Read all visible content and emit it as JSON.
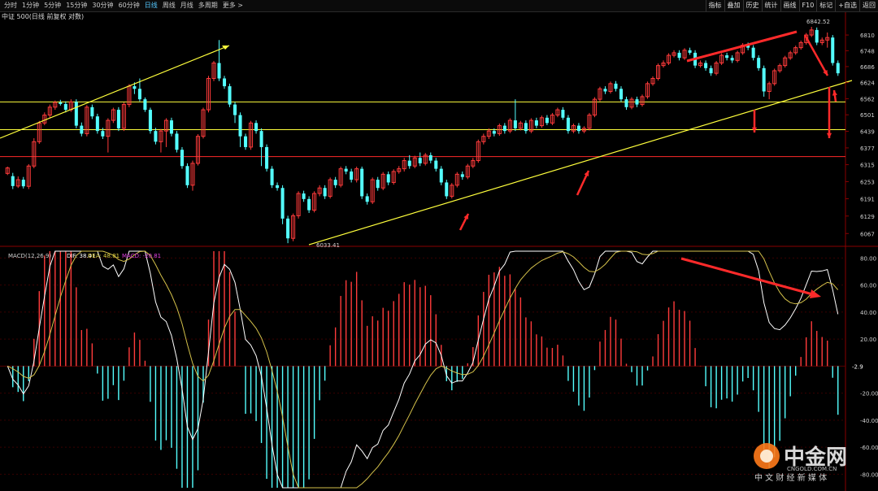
{
  "toolbar": {
    "tabs": [
      "分时",
      "1分钟",
      "5分钟",
      "15分钟",
      "30分钟",
      "60分钟",
      "日线",
      "周线",
      "月线",
      "多周期",
      "更多 >"
    ],
    "active_tab": "日线",
    "tools": [
      "指标",
      "叠加",
      "历史",
      "统计",
      "画线",
      "F10",
      "标记",
      "+自选",
      "返回"
    ]
  },
  "price_panel": {
    "instrument_label": "中证 500(日线 前复权 对数)",
    "y_ticks": [
      "6810",
      "6748",
      "6686",
      "6624",
      "6562",
      "6501",
      "6439",
      "6377",
      "6315",
      "6253",
      "6191",
      "6129",
      "6067"
    ],
    "high_label": "6842.52",
    "low_label": "6033.41"
  },
  "macd_panel": {
    "name": "MACD(12,26,9)",
    "dif_label": "DIF: 38.41",
    "dea_label": "DEA: 48.81",
    "macd_label": "MACD: -20.81",
    "y_ticks": [
      "80.00",
      "60.00",
      "40.00",
      "20.00",
      "-20.00",
      "-40.00",
      "-60.00",
      "-80.00"
    ],
    "current_label": "-2.9"
  },
  "watermark": {
    "brand": "中金网",
    "domain": "CNGOLD.COM.CN",
    "tagline": "中 文 财 经 新 媒 体"
  },
  "colors": {
    "up": "#ff3b3b",
    "down": "#54ffff",
    "line_dif": "#ffffff",
    "line_dea": "#d4c14a",
    "annot_yellow": "#ffff3c",
    "annot_red": "#ff2a2a",
    "grid": "#5a0000"
  },
  "chart_data": {
    "type": "candlestick",
    "candles": [
      [
        6283,
        6303,
        6277,
        6308
      ],
      [
        6273,
        6237,
        6226,
        6285
      ],
      [
        6237,
        6260,
        6230,
        6272
      ],
      [
        6260,
        6236,
        6228,
        6270
      ],
      [
        6236,
        6310,
        6226,
        6317
      ],
      [
        6310,
        6400,
        6302,
        6413
      ],
      [
        6400,
        6470,
        6392,
        6478
      ],
      [
        6470,
        6500,
        6462,
        6510
      ],
      [
        6500,
        6530,
        6488,
        6540
      ],
      [
        6530,
        6548,
        6520,
        6555
      ],
      [
        6548,
        6542,
        6536,
        6558
      ],
      [
        6542,
        6520,
        6510,
        6552
      ],
      [
        6520,
        6550,
        6512,
        6560
      ],
      [
        6550,
        6460,
        6450,
        6560
      ],
      [
        6460,
        6430,
        6420,
        6472
      ],
      [
        6430,
        6530,
        6420,
        6538
      ],
      [
        6530,
        6495,
        6485,
        6540
      ],
      [
        6495,
        6440,
        6430,
        6505
      ],
      [
        6440,
        6420,
        6410,
        6452
      ],
      [
        6420,
        6480,
        6360,
        6488
      ],
      [
        6480,
        6520,
        6470,
        6528
      ],
      [
        6520,
        6450,
        6440,
        6530
      ],
      [
        6450,
        6540,
        6440,
        6548
      ],
      [
        6540,
        6610,
        6530,
        6618
      ],
      [
        6610,
        6600,
        6580,
        6625
      ],
      [
        6600,
        6560,
        6552,
        6640
      ],
      [
        6560,
        6520,
        6512,
        6567
      ],
      [
        6520,
        6440,
        6430,
        6528
      ],
      [
        6440,
        6400,
        6390,
        6452
      ],
      [
        6400,
        6440,
        6360,
        6448
      ],
      [
        6440,
        6480,
        6380,
        6488
      ],
      [
        6480,
        6430,
        6420,
        6490
      ],
      [
        6430,
        6370,
        6360,
        6440
      ],
      [
        6370,
        6310,
        6300,
        6380
      ],
      [
        6310,
        6240,
        6230,
        6320
      ],
      [
        6240,
        6320,
        6220,
        6330
      ],
      [
        6320,
        6420,
        6312,
        6428
      ],
      [
        6420,
        6520,
        6412,
        6528
      ],
      [
        6520,
        6640,
        6510,
        6650
      ],
      [
        6640,
        6700,
        6630,
        6708
      ],
      [
        6700,
        6640,
        6630,
        6790
      ],
      [
        6640,
        6610,
        6600,
        6650
      ],
      [
        6610,
        6540,
        6530,
        6620
      ],
      [
        6540,
        6500,
        6470,
        6550
      ],
      [
        6500,
        6420,
        6380,
        6510
      ],
      [
        6420,
        6380,
        6370,
        6430
      ],
      [
        6380,
        6470,
        6370,
        6478
      ],
      [
        6470,
        6440,
        6430,
        6480
      ],
      [
        6440,
        6380,
        6310,
        6450
      ],
      [
        6380,
        6300,
        6290,
        6390
      ],
      [
        6300,
        6240,
        6230,
        6310
      ],
      [
        6240,
        6230,
        6220,
        6250
      ],
      [
        6230,
        6120,
        6100,
        6240
      ],
      [
        6120,
        6050,
        6033,
        6130
      ],
      [
        6050,
        6130,
        6040,
        6138
      ],
      [
        6130,
        6210,
        6120,
        6218
      ],
      [
        6210,
        6190,
        6180,
        6220
      ],
      [
        6190,
        6150,
        6140,
        6200
      ],
      [
        6150,
        6210,
        6142,
        6218
      ],
      [
        6210,
        6230,
        6200,
        6240
      ],
      [
        6230,
        6200,
        6190,
        6240
      ],
      [
        6200,
        6260,
        6192,
        6268
      ],
      [
        6260,
        6240,
        6230,
        6270
      ],
      [
        6240,
        6300,
        6232,
        6308
      ],
      [
        6300,
        6290,
        6280,
        6310
      ],
      [
        6290,
        6260,
        6250,
        6300
      ],
      [
        6260,
        6300,
        6250,
        6308
      ],
      [
        6300,
        6200,
        6190,
        6308
      ],
      [
        6200,
        6180,
        6170,
        6210
      ],
      [
        6180,
        6260,
        6172,
        6268
      ],
      [
        6260,
        6230,
        6220,
        6270
      ],
      [
        6230,
        6280,
        6222,
        6288
      ],
      [
        6280,
        6250,
        6240,
        6290
      ],
      [
        6250,
        6290,
        6242,
        6298
      ],
      [
        6290,
        6300,
        6282,
        6310
      ],
      [
        6300,
        6330,
        6290,
        6340
      ],
      [
        6330,
        6310,
        6300,
        6350
      ],
      [
        6310,
        6340,
        6302,
        6348
      ],
      [
        6340,
        6320,
        6310,
        6360
      ],
      [
        6320,
        6350,
        6312,
        6358
      ],
      [
        6350,
        6330,
        6320,
        6360
      ],
      [
        6330,
        6300,
        6290,
        6340
      ],
      [
        6300,
        6250,
        6240,
        6310
      ],
      [
        6250,
        6200,
        6190,
        6260
      ],
      [
        6200,
        6240,
        6192,
        6248
      ],
      [
        6240,
        6280,
        6232,
        6288
      ],
      [
        6280,
        6270,
        6260,
        6290
      ],
      [
        6270,
        6310,
        6262,
        6318
      ],
      [
        6310,
        6330,
        6302,
        6340
      ],
      [
        6330,
        6400,
        6322,
        6408
      ],
      [
        6400,
        6420,
        6390,
        6430
      ],
      [
        6420,
        6440,
        6410,
        6450
      ],
      [
        6440,
        6430,
        6420,
        6450
      ],
      [
        6430,
        6460,
        6422,
        6468
      ],
      [
        6460,
        6440,
        6430,
        6470
      ],
      [
        6440,
        6480,
        6432,
        6488
      ],
      [
        6480,
        6450,
        6440,
        6560
      ],
      [
        6450,
        6470,
        6442,
        6478
      ],
      [
        6470,
        6440,
        6430,
        6480
      ],
      [
        6440,
        6480,
        6432,
        6488
      ],
      [
        6480,
        6460,
        6450,
        6490
      ],
      [
        6460,
        6490,
        6452,
        6498
      ],
      [
        6490,
        6470,
        6462,
        6500
      ],
      [
        6470,
        6500,
        6462,
        6508
      ],
      [
        6500,
        6520,
        6492,
        6528
      ],
      [
        6520,
        6490,
        6482,
        6530
      ],
      [
        6490,
        6440,
        6430,
        6500
      ],
      [
        6440,
        6460,
        6432,
        6468
      ],
      [
        6460,
        6440,
        6430,
        6470
      ],
      [
        6440,
        6450,
        6432,
        6458
      ],
      [
        6450,
        6500,
        6442,
        6508
      ],
      [
        6500,
        6560,
        6492,
        6568
      ],
      [
        6560,
        6600,
        6552,
        6608
      ],
      [
        6600,
        6590,
        6580,
        6610
      ],
      [
        6590,
        6620,
        6582,
        6628
      ],
      [
        6620,
        6600,
        6590,
        6630
      ],
      [
        6600,
        6560,
        6550,
        6610
      ],
      [
        6560,
        6530,
        6520,
        6570
      ],
      [
        6530,
        6560,
        6522,
        6568
      ],
      [
        6560,
        6540,
        6530,
        6570
      ],
      [
        6540,
        6570,
        6532,
        6578
      ],
      [
        6570,
        6620,
        6562,
        6628
      ],
      [
        6620,
        6640,
        6612,
        6648
      ],
      [
        6640,
        6690,
        6632,
        6698
      ],
      [
        6690,
        6700,
        6682,
        6710
      ],
      [
        6700,
        6730,
        6692,
        6738
      ],
      [
        6730,
        6740,
        6722,
        6750
      ],
      [
        6740,
        6720,
        6710,
        6750
      ],
      [
        6720,
        6750,
        6712,
        6758
      ],
      [
        6750,
        6740,
        6732,
        6760
      ],
      [
        6740,
        6690,
        6680,
        6750
      ],
      [
        6690,
        6700,
        6682,
        6710
      ],
      [
        6700,
        6680,
        6670,
        6710
      ],
      [
        6680,
        6660,
        6650,
        6690
      ],
      [
        6660,
        6700,
        6652,
        6708
      ],
      [
        6700,
        6730,
        6692,
        6738
      ],
      [
        6730,
        6720,
        6710,
        6740
      ],
      [
        6720,
        6710,
        6700,
        6730
      ],
      [
        6710,
        6740,
        6702,
        6748
      ],
      [
        6740,
        6770,
        6732,
        6778
      ],
      [
        6770,
        6760,
        6750,
        6780
      ],
      [
        6760,
        6720,
        6710,
        6770
      ],
      [
        6720,
        6680,
        6670,
        6730
      ],
      [
        6680,
        6590,
        6570,
        6690
      ],
      [
        6590,
        6620,
        6560,
        6628
      ],
      [
        6620,
        6670,
        6612,
        6678
      ],
      [
        6670,
        6690,
        6662,
        6698
      ],
      [
        6690,
        6720,
        6682,
        6728
      ],
      [
        6720,
        6740,
        6712,
        6748
      ],
      [
        6740,
        6760,
        6732,
        6768
      ],
      [
        6760,
        6780,
        6752,
        6788
      ],
      [
        6780,
        6810,
        6772,
        6818
      ],
      [
        6810,
        6830,
        6802,
        6842.52
      ],
      [
        6830,
        6780,
        6770,
        6840
      ],
      [
        6780,
        6790,
        6770,
        6800
      ],
      [
        6790,
        6800,
        6760,
        6820
      ],
      [
        6800,
        6700,
        6690,
        6810
      ],
      [
        6700,
        6660,
        6650,
        6710
      ]
    ],
    "y_scale": "log",
    "y_range": [
      6033.41,
      6842.52
    ],
    "horizontal_levels": [
      {
        "price": 6550,
        "color": "yellow"
      },
      {
        "price": 6445,
        "color": "yellow"
      },
      {
        "price": 6345,
        "color": "red"
      }
    ],
    "macd": {
      "params": [
        12,
        26,
        9
      ],
      "dif": 38.41,
      "dea": 48.81,
      "macd": -20.81,
      "y_range": [
        -90,
        85
      ]
    }
  }
}
